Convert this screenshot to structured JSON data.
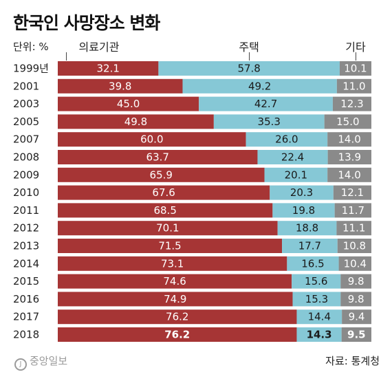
{
  "chart_data": {
    "type": "bar",
    "stacked": true,
    "orientation": "horizontal",
    "title": "한국인 사망장소 변화",
    "unit_label": "단위: %",
    "categories": [
      "1999년",
      "2001",
      "2003",
      "2005",
      "2007",
      "2008",
      "2009",
      "2010",
      "2011",
      "2012",
      "2013",
      "2014",
      "2015",
      "2016",
      "2017",
      "2018"
    ],
    "series": [
      {
        "name": "의료기관",
        "color": "#a63535",
        "values": [
          32.1,
          39.8,
          45.0,
          49.8,
          60.0,
          63.7,
          65.9,
          67.6,
          68.5,
          70.1,
          71.5,
          73.1,
          74.6,
          74.9,
          76.2,
          76.2
        ]
      },
      {
        "name": "주택",
        "color": "#86c8d6",
        "values": [
          57.8,
          49.2,
          42.7,
          35.3,
          26.0,
          22.4,
          20.1,
          20.3,
          19.8,
          18.8,
          17.7,
          16.5,
          15.6,
          15.3,
          14.4,
          14.3
        ]
      },
      {
        "name": "기타",
        "color": "#8a8a8a",
        "values": [
          10.1,
          11.0,
          12.3,
          15.0,
          14.0,
          13.9,
          14.0,
          12.1,
          11.7,
          11.1,
          10.8,
          10.4,
          9.8,
          9.8,
          9.4,
          9.5
        ]
      }
    ],
    "value_labels": [
      [
        "32.1",
        "39.8",
        "45.0",
        "49.8",
        "60.0",
        "63.7",
        "65.9",
        "67.6",
        "68.5",
        "70.1",
        "71.5",
        "73.1",
        "74.6",
        "74.9",
        "76.2",
        "76.2"
      ],
      [
        "57.8",
        "49.2",
        "42.7",
        "35.3",
        "26.0",
        "22.4",
        "20.1",
        "20.3",
        "19.8",
        "18.8",
        "17.7",
        "16.5",
        "15.6",
        "15.3",
        "14.4",
        "14.3"
      ],
      [
        "10.1",
        "11.0",
        "12.3",
        "15.0",
        "14.0",
        "13.9",
        "14.0",
        "12.1",
        "11.7",
        "11.1",
        "10.8",
        "10.4",
        "9.8",
        "9.8",
        "9.4",
        "9.5"
      ]
    ],
    "highlight_last_row": true,
    "xlim": [
      0,
      100
    ],
    "grid": false,
    "legend": "top"
  },
  "logo_text": "중앙일보",
  "source": "자료: 통계청"
}
